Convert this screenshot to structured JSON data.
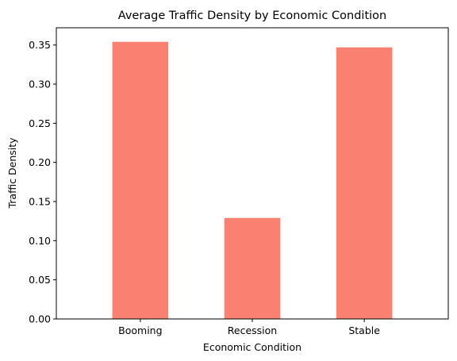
{
  "chart_data": {
    "type": "bar",
    "title": "Average Traffic Density by Economic Condition",
    "xlabel": "Economic Condition",
    "ylabel": "Traffic Density",
    "categories": [
      "Booming",
      "Recession",
      "Stable"
    ],
    "values": [
      0.354,
      0.129,
      0.347
    ],
    "ylim": [
      0,
      0.372
    ],
    "yticks": [
      "0.00",
      "0.05",
      "0.10",
      "0.15",
      "0.20",
      "0.25",
      "0.30",
      "0.35"
    ],
    "bar_color": "#fa8072",
    "grid": false,
    "legend": "none"
  }
}
